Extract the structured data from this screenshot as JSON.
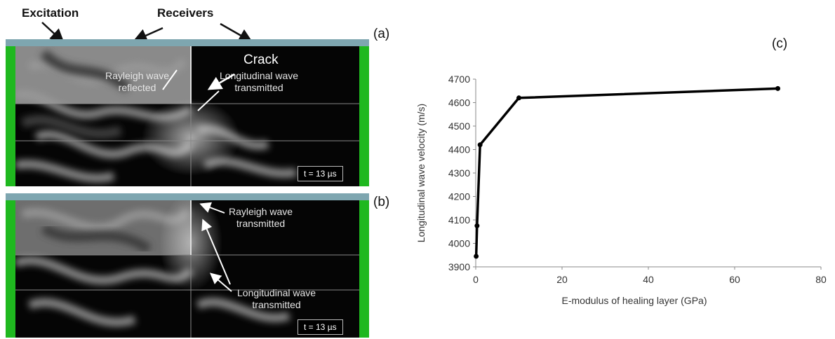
{
  "top_labels": {
    "excitation": "Excitation",
    "receivers": "Receivers"
  },
  "panel_a": {
    "letter": "(a)",
    "crack_label": "Crack",
    "rayleigh_label": [
      "Rayleigh wave",
      "reflected"
    ],
    "longitudinal_label": [
      "Longitudinal wave",
      "transmitted"
    ],
    "time_label": "t = 13 µs"
  },
  "panel_b": {
    "letter": "(b)",
    "rayleigh_label": [
      "Rayleigh wave",
      "transmitted"
    ],
    "longitudinal_label": [
      "Longitudinal wave",
      "transmitted"
    ],
    "time_label": "t = 13 µs"
  },
  "panel_c": {
    "letter": "(c)"
  },
  "colors": {
    "bar_green": "#1fb81f",
    "surface_strip": "#7ea6b0",
    "line": "#000000"
  },
  "chart_data": {
    "type": "line",
    "xlabel": "E-modulus of healing layer (GPa)",
    "ylabel": "Longitudinal wave velocity (m/s)",
    "xlim": [
      0,
      80
    ],
    "ylim": [
      3900,
      4700
    ],
    "x_ticks": [
      "0",
      "20",
      "40",
      "60",
      "80"
    ],
    "y_ticks": [
      "3900",
      "4000",
      "4100",
      "4200",
      "4300",
      "4400",
      "4500",
      "4600",
      "4700"
    ],
    "series": [
      {
        "x": [
          0.1,
          0.3,
          1,
          10,
          70
        ],
        "y": [
          3945,
          4075,
          4420,
          4620,
          4660
        ]
      }
    ]
  }
}
